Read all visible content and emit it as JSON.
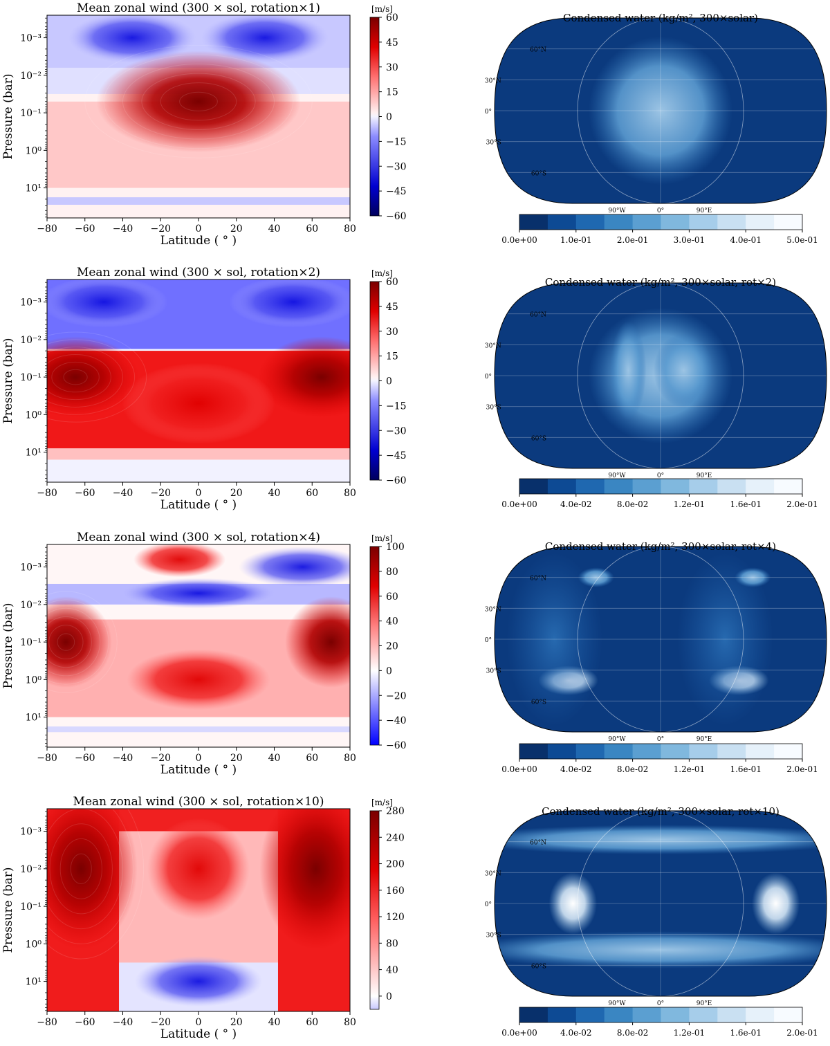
{
  "figure": {
    "wind_panels": [
      {
        "title": "Mean zonal wind (300 × sol, rotation×1)",
        "ylabel": "Pressure (bar)",
        "xlabel": "Latitude ( ° )",
        "xticks": [
          "−80",
          "−60",
          "−40",
          "−20",
          "0",
          "20",
          "40",
          "60",
          "80"
        ],
        "yticks": [
          "10⁻³",
          "10⁻²",
          "10⁻¹",
          "10⁰",
          "10¹"
        ],
        "colorbar_unit": "[m/s]",
        "colorbar_ticks": [
          "60",
          "45",
          "30",
          "15",
          "0",
          "−15",
          "−30",
          "−45",
          "−60"
        ]
      },
      {
        "title": "Mean zonal wind (300 × sol, rotation×2)",
        "ylabel": "Pressure (bar)",
        "xlabel": "Latitude ( ° )",
        "xticks": [
          "−80",
          "−60",
          "−40",
          "−20",
          "0",
          "20",
          "40",
          "60",
          "80"
        ],
        "yticks": [
          "10⁻³",
          "10⁻²",
          "10⁻¹",
          "10⁰",
          "10¹"
        ],
        "colorbar_unit": "[m/s]",
        "colorbar_ticks": [
          "60",
          "45",
          "30",
          "15",
          "0",
          "−15",
          "−30",
          "−45",
          "−60"
        ]
      },
      {
        "title": "Mean zonal wind (300 × sol, rotation×4)",
        "ylabel": "Pressure (bar)",
        "xlabel": "Latitude ( ° )",
        "xticks": [
          "−80",
          "−60",
          "−40",
          "−20",
          "0",
          "20",
          "40",
          "60",
          "80"
        ],
        "yticks": [
          "10⁻³",
          "10⁻²",
          "10⁻¹",
          "10⁰",
          "10¹"
        ],
        "colorbar_unit": "[m/s]",
        "colorbar_ticks": [
          "100",
          "80",
          "60",
          "40",
          "20",
          "0",
          "−20",
          "−40",
          "−60"
        ]
      },
      {
        "title": "Mean zonal wind (300 × sol, rotation×10)",
        "ylabel": "Pressure (bar)",
        "xlabel": "Latitude ( ° )",
        "xticks": [
          "−80",
          "−60",
          "−40",
          "−20",
          "0",
          "20",
          "40",
          "60",
          "80"
        ],
        "yticks": [
          "10⁻³",
          "10⁻²",
          "10⁻¹",
          "10⁰",
          "10¹"
        ],
        "colorbar_unit": "[m/s]",
        "colorbar_ticks": [
          "280",
          "240",
          "200",
          "160",
          "120",
          "80",
          "40",
          "0"
        ]
      }
    ],
    "map_panels": [
      {
        "title": "Condensed water (kg/m², 300×solar)",
        "lat_labels": [
          "60°N",
          "30°N",
          "0°",
          "30°S",
          "60°S"
        ],
        "lon_labels": [
          "90°W",
          "0°",
          "90°E"
        ],
        "colorbar_ticks": [
          "0.0e+00",
          "1.0e-01",
          "2.0e-01",
          "3.0e-01",
          "4.0e-01",
          "5.0e-01"
        ]
      },
      {
        "title": "Condensed water (kg/m², 300×solar, rot×2)",
        "lat_labels": [
          "60°N",
          "30°N",
          "0°",
          "30°S",
          "60°S"
        ],
        "lon_labels": [
          "90°W",
          "0°",
          "90°E"
        ],
        "colorbar_ticks": [
          "0.0e+00",
          "4.0e-02",
          "8.0e-02",
          "1.2e-01",
          "1.6e-01",
          "2.0e-01"
        ]
      },
      {
        "title": "Condensed water (kg/m², 300×solar, rot×4)",
        "lat_labels": [
          "60°N",
          "30°N",
          "0°",
          "30°S",
          "60°S"
        ],
        "lon_labels": [
          "90°W",
          "0°",
          "90°E"
        ],
        "colorbar_ticks": [
          "0.0e+00",
          "4.0e-02",
          "8.0e-02",
          "1.2e-01",
          "1.6e-01",
          "2.0e-01"
        ]
      },
      {
        "title": "Condensed water (kg/m², 300×solar, rot×10)",
        "lat_labels": [
          "60°N",
          "30°N",
          "0°",
          "30°S",
          "60°S"
        ],
        "lon_labels": [
          "90°W",
          "0°",
          "90°E"
        ],
        "colorbar_ticks": [
          "0.0e+00",
          "4.0e-02",
          "8.0e-02",
          "1.2e-01",
          "1.6e-01",
          "2.0e-01"
        ]
      }
    ]
  },
  "chart_data": [
    {
      "type": "heatmap",
      "title": "Mean zonal wind (300 × sol, rotation×1)",
      "xlabel": "Latitude (°)",
      "ylabel": "Pressure (bar)",
      "xlim": [
        -80,
        80
      ],
      "ylim_log10_bar": [
        -3.6,
        1.8
      ],
      "colorbar": {
        "label": "[m/s]",
        "min": -60,
        "max": 60
      },
      "features": [
        {
          "kind": "eastward jet",
          "lat": 0,
          "log10_p": -1.3,
          "speed": 60,
          "lat_halfwidth": 40,
          "logp_halfwidth": 1.0
        },
        {
          "kind": "westward",
          "lat": -35,
          "log10_p": -3.0,
          "speed": -40,
          "lat_halfwidth": 25,
          "logp_halfwidth": 0.5
        },
        {
          "kind": "westward",
          "lat": 35,
          "log10_p": -3.0,
          "speed": -40,
          "lat_halfwidth": 25,
          "logp_halfwidth": 0.5
        }
      ]
    },
    {
      "type": "heatmap",
      "title": "Mean zonal wind (300 × sol, rotation×2)",
      "xlabel": "Latitude (°)",
      "ylabel": "Pressure (bar)",
      "xlim": [
        -80,
        80
      ],
      "ylim_log10_bar": [
        -3.6,
        1.8
      ],
      "colorbar": {
        "label": "[m/s]",
        "min": -60,
        "max": 60
      },
      "features": [
        {
          "kind": "eastward jet",
          "lat": -65,
          "log10_p": -1.0,
          "speed": 60,
          "lat_halfwidth": 25,
          "logp_halfwidth": 0.8
        },
        {
          "kind": "eastward jet",
          "lat": 65,
          "log10_p": -1.0,
          "speed": 60,
          "lat_halfwidth": 25,
          "logp_halfwidth": 0.8
        },
        {
          "kind": "eastward",
          "lat": 0,
          "log10_p": -0.3,
          "speed": 40,
          "lat_halfwidth": 30,
          "logp_halfwidth": 0.8
        },
        {
          "kind": "westward",
          "lat": -50,
          "log10_p": -3.0,
          "speed": -45,
          "lat_halfwidth": 25,
          "logp_halfwidth": 0.5
        },
        {
          "kind": "westward",
          "lat": 50,
          "log10_p": -3.0,
          "speed": -45,
          "lat_halfwidth": 25,
          "logp_halfwidth": 0.5
        }
      ]
    },
    {
      "type": "heatmap",
      "title": "Mean zonal wind (300 × sol, rotation×4)",
      "xlabel": "Latitude (°)",
      "ylabel": "Pressure (bar)",
      "xlim": [
        -80,
        80
      ],
      "ylim_log10_bar": [
        -3.6,
        1.8
      ],
      "colorbar": {
        "label": "[m/s]",
        "min": -60,
        "max": 100
      },
      "features": [
        {
          "kind": "eastward jet",
          "lat": -70,
          "log10_p": -1.0,
          "speed": 100,
          "lat_halfwidth": 18,
          "logp_halfwidth": 0.9
        },
        {
          "kind": "eastward jet",
          "lat": 70,
          "log10_p": -1.0,
          "speed": 100,
          "lat_halfwidth": 18,
          "logp_halfwidth": 0.9
        },
        {
          "kind": "eastward",
          "lat": 0,
          "log10_p": 0.0,
          "speed": 45,
          "lat_halfwidth": 28,
          "logp_halfwidth": 0.6
        },
        {
          "kind": "eastward",
          "lat": -10,
          "log10_p": -3.2,
          "speed": 70,
          "lat_halfwidth": 18,
          "logp_halfwidth": 0.35
        },
        {
          "kind": "westward",
          "lat": 0,
          "log10_p": -2.3,
          "speed": -45,
          "lat_halfwidth": 30,
          "logp_halfwidth": 0.3
        },
        {
          "kind": "westward",
          "lat": 55,
          "log10_p": -3.0,
          "speed": -45,
          "lat_halfwidth": 25,
          "logp_halfwidth": 0.4
        }
      ]
    },
    {
      "type": "heatmap",
      "title": "Mean zonal wind (300 × sol, rotation×10)",
      "xlabel": "Latitude (°)",
      "ylabel": "Pressure (bar)",
      "xlim": [
        -80,
        80
      ],
      "ylim_log10_bar": [
        -3.6,
        1.8
      ],
      "colorbar": {
        "label": "[m/s]",
        "min": -20,
        "max": 280
      },
      "features": [
        {
          "kind": "eastward jet",
          "lat": -62,
          "log10_p": -2.0,
          "speed": 280,
          "lat_halfwidth": 22,
          "logp_halfwidth": 1.6
        },
        {
          "kind": "eastward jet",
          "lat": 62,
          "log10_p": -2.0,
          "speed": 280,
          "lat_halfwidth": 22,
          "logp_halfwidth": 1.6
        },
        {
          "kind": "eastward",
          "lat": 0,
          "log10_p": -2.0,
          "speed": 60,
          "lat_halfwidth": 20,
          "logp_halfwidth": 1.0
        },
        {
          "kind": "westward",
          "lat": 0,
          "log10_p": 1.0,
          "speed": -10,
          "lat_halfwidth": 25,
          "logp_halfwidth": 0.5
        }
      ]
    },
    {
      "type": "heatmap",
      "title": "Condensed water (kg/m², 300×solar)",
      "projection": "Robinson",
      "colorbar": {
        "min": 0.0,
        "max": 0.5
      },
      "features": [
        {
          "kind": "cloud",
          "lon": 0,
          "lat": 0,
          "value": 0.3,
          "lon_halfwidth": 60,
          "lat_halfwidth": 60
        }
      ]
    },
    {
      "type": "heatmap",
      "title": "Condensed water (kg/m², 300×solar, rot×2)",
      "projection": "Robinson",
      "colorbar": {
        "min": 0.0,
        "max": 0.2
      },
      "features": [
        {
          "kind": "cloud",
          "lon": 0,
          "lat": 0,
          "value": 0.12,
          "lon_halfwidth": 60,
          "lat_halfwidth": 55
        },
        {
          "kind": "cloud",
          "lon": -35,
          "lat": 5,
          "value": 0.16,
          "lon_halfwidth": 15,
          "lat_halfwidth": 40
        },
        {
          "kind": "cloud",
          "lon": 25,
          "lat": 5,
          "value": 0.15,
          "lon_halfwidth": 25,
          "lat_halfwidth": 30
        }
      ]
    },
    {
      "type": "heatmap",
      "title": "Condensed water (kg/m², 300×solar, rot×4)",
      "projection": "Robinson",
      "colorbar": {
        "min": 0.0,
        "max": 0.2
      },
      "features": [
        {
          "kind": "cloud",
          "lon": -100,
          "lat": -40,
          "value": 0.2,
          "lon_halfwidth": 25,
          "lat_halfwidth": 12
        },
        {
          "kind": "cloud",
          "lon": 85,
          "lat": -40,
          "value": 0.2,
          "lon_halfwidth": 25,
          "lat_halfwidth": 12
        },
        {
          "kind": "cloud",
          "lon": -115,
          "lat": 0,
          "value": 0.05,
          "lon_halfwidth": 40,
          "lat_halfwidth": 70
        },
        {
          "kind": "cloud",
          "lon": 70,
          "lat": 0,
          "value": 0.05,
          "lon_halfwidth": 40,
          "lat_halfwidth": 70
        },
        {
          "kind": "cloud",
          "lon": -70,
          "lat": 60,
          "value": 0.1,
          "lon_halfwidth": 15,
          "lat_halfwidth": 8
        },
        {
          "kind": "cloud",
          "lon": 100,
          "lat": 60,
          "value": 0.1,
          "lon_halfwidth": 15,
          "lat_halfwidth": 8
        }
      ]
    },
    {
      "type": "heatmap",
      "title": "Condensed water (kg/m², 300×solar, rot×10)",
      "projection": "Robinson",
      "colorbar": {
        "min": 0.0,
        "max": 0.2
      },
      "features": [
        {
          "kind": "cloud",
          "lon": -95,
          "lat": 0,
          "value": 0.2,
          "lon_halfwidth": 20,
          "lat_halfwidth": 25
        },
        {
          "kind": "cloud",
          "lon": 125,
          "lat": 0,
          "value": 0.2,
          "lon_halfwidth": 20,
          "lat_halfwidth": 25
        },
        {
          "kind": "cloud",
          "lon": 0,
          "lat": 62,
          "value": 0.15,
          "lon_halfwidth": 170,
          "lat_halfwidth": 12
        },
        {
          "kind": "cloud",
          "lon": 0,
          "lat": -45,
          "value": 0.15,
          "lon_halfwidth": 170,
          "lat_halfwidth": 15
        }
      ]
    }
  ]
}
